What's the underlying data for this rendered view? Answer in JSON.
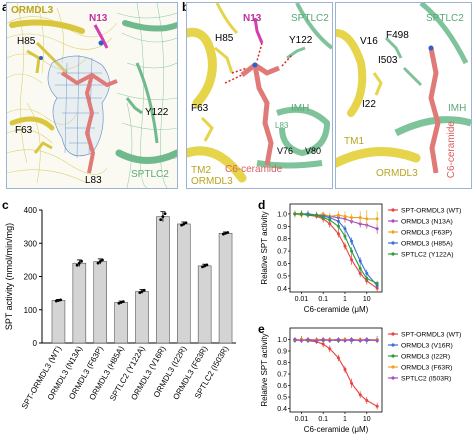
{
  "panel_labels": {
    "a": "a",
    "b": "b",
    "c": "c",
    "d": "d",
    "e": "e"
  },
  "panel_a": {
    "labels": {
      "ormdl3": "ORMDL3",
      "n13": "N13",
      "h85": "H85",
      "y122": "Y122",
      "f63": "F63",
      "l83": "L83",
      "sptlc2": "SPTLC2"
    }
  },
  "panel_b_left": {
    "labels": {
      "n13": "N13",
      "sptlc2": "SPTLC2",
      "h85": "H85",
      "y122": "Y122",
      "f63": "F63",
      "imh": "IMH",
      "l83": "L83",
      "v76": "V76",
      "v80": "V80",
      "c6": "C6-ceramide",
      "tm2": "TM2",
      "ormdl3": "ORMDL3"
    }
  },
  "panel_b_right": {
    "labels": {
      "sptlc2": "SPTLC2",
      "v16": "V16",
      "f498": "F498",
      "i503": "I503",
      "i22": "I22",
      "imh": "IMH",
      "tm1": "TM1",
      "ormdl3": "ORMDL3",
      "c6": "C6-ceramide"
    }
  },
  "colors": {
    "ormdl3": "#e6d44a",
    "sptlc2": "#7fc39a",
    "ceramide": "#e07a78",
    "n13": "#d23fb0",
    "map_blue": "#8fb0d8",
    "bar": "#d4d4d4"
  },
  "chart_data": [
    {
      "type": "bar",
      "panel": "c",
      "ylabel": "SPT activity (nmol/min/mg)",
      "ylim": [
        0,
        400
      ],
      "yticks": [
        0,
        100,
        200,
        300,
        400
      ],
      "categories": [
        "SPT-ORMDL3 (WT)",
        "ORMDL3 (N13A)",
        "ORMDL3 (F63P)",
        "ORMDL3 (H85A)",
        "SPTLC2 (Y122A)",
        "ORMDL3 (V16R)",
        "ORMDL3 (I22R)",
        "ORMDL3 (F63R)",
        "SPTLC2 (I503R)"
      ],
      "values": [
        128,
        240,
        245,
        122,
        155,
        380,
        358,
        232,
        330
      ],
      "errors": [
        3,
        10,
        8,
        4,
        6,
        15,
        6,
        5,
        4
      ]
    },
    {
      "type": "line",
      "panel": "d",
      "xlabel": "C6-ceramide (μM)",
      "ylabel": "Relative SPT activity",
      "xscale": "log",
      "xlim": [
        0.003,
        50
      ],
      "ylim": [
        0.37,
        1.08
      ],
      "xticks": [
        0.01,
        0.1,
        1,
        10
      ],
      "xtick_labels": [
        "0.01",
        "0.1",
        "1",
        "10"
      ],
      "yticks": [
        0.4,
        0.5,
        0.6,
        0.7,
        0.8,
        0.9,
        1.0
      ],
      "ytick_labels": [
        "0.4",
        "0.5",
        "0.6",
        "0.7",
        "0.8",
        "0.9",
        "1.0"
      ],
      "x": [
        0.005,
        0.01,
        0.02,
        0.05,
        0.1,
        0.2,
        0.5,
        1,
        2,
        5,
        10,
        30
      ],
      "series": [
        {
          "name": "SPT-ORMDL3 (WT)",
          "color": "#e8423f",
          "values": [
            1.0,
            1.0,
            0.99,
            0.98,
            0.96,
            0.92,
            0.84,
            0.74,
            0.63,
            0.52,
            0.46,
            0.4
          ],
          "errors": [
            0.02,
            0.03,
            0.02,
            0.02,
            0.03,
            0.03,
            0.03,
            0.03,
            0.04,
            0.03,
            0.03,
            0.03
          ]
        },
        {
          "name": "ORMDL3 (N13A)",
          "color": "#a64ac9",
          "values": [
            1.0,
            1.0,
            1.0,
            0.99,
            0.99,
            0.98,
            0.97,
            0.96,
            0.94,
            0.92,
            0.91,
            0.88
          ],
          "errors": [
            0.02,
            0.02,
            0.02,
            0.02,
            0.02,
            0.02,
            0.02,
            0.03,
            0.02,
            0.03,
            0.03,
            0.04
          ]
        },
        {
          "name": "ORMDL3 (F63P)",
          "color": "#f0a21c",
          "values": [
            1.0,
            0.99,
            1.0,
            0.99,
            1.0,
            0.98,
            0.99,
            0.98,
            0.97,
            0.97,
            0.96,
            0.96
          ],
          "errors": [
            0.03,
            0.02,
            0.03,
            0.03,
            0.02,
            0.03,
            0.03,
            0.04,
            0.03,
            0.05,
            0.07,
            0.06
          ]
        },
        {
          "name": "ORMDL3 (H85A)",
          "color": "#3a6fd8",
          "values": [
            1.0,
            1.0,
            1.0,
            0.99,
            0.98,
            0.97,
            0.94,
            0.88,
            0.78,
            0.62,
            0.52,
            0.42
          ],
          "errors": [
            0.02,
            0.02,
            0.02,
            0.02,
            0.02,
            0.02,
            0.03,
            0.03,
            0.03,
            0.03,
            0.03,
            0.02
          ]
        },
        {
          "name": "SPTLC2 (Y122A)",
          "color": "#2e9b3a",
          "values": [
            1.0,
            1.0,
            0.99,
            0.99,
            0.97,
            0.95,
            0.9,
            0.82,
            0.7,
            0.56,
            0.48,
            0.44
          ],
          "errors": [
            0.02,
            0.02,
            0.02,
            0.02,
            0.02,
            0.02,
            0.03,
            0.03,
            0.03,
            0.03,
            0.02,
            0.02
          ]
        }
      ]
    },
    {
      "type": "line",
      "panel": "e",
      "xlabel": "C6-ceramide (μM)",
      "ylabel": "Relative SPT activity",
      "xscale": "log",
      "xlim": [
        0.003,
        50
      ],
      "ylim": [
        0.37,
        1.1
      ],
      "xticks": [
        0.01,
        0.1,
        1,
        10
      ],
      "xtick_labels": [
        "0.01",
        "0.1",
        "1",
        "10"
      ],
      "yticks": [
        0.4,
        0.5,
        0.6,
        0.7,
        0.8,
        0.9,
        1.0
      ],
      "ytick_labels": [
        "0.4",
        "0.5",
        "0.6",
        "0.7",
        "0.8",
        "0.9",
        "1.0"
      ],
      "x": [
        0.005,
        0.01,
        0.02,
        0.05,
        0.1,
        0.2,
        0.5,
        1,
        2,
        5,
        10,
        30
      ],
      "series": [
        {
          "name": "SPT-ORMDL3 (WT)",
          "color": "#e8423f",
          "values": [
            1.0,
            1.0,
            0.99,
            0.98,
            0.96,
            0.92,
            0.84,
            0.74,
            0.62,
            0.52,
            0.47,
            0.42
          ],
          "errors": [
            0.02,
            0.03,
            0.02,
            0.02,
            0.03,
            0.03,
            0.03,
            0.03,
            0.04,
            0.03,
            0.03,
            0.03
          ]
        },
        {
          "name": "ORMDL3 (V16R)",
          "color": "#3a6fd8",
          "values": [
            1.0,
            1.0,
            1.0,
            0.99,
            1.0,
            1.0,
            0.99,
            1.0,
            0.99,
            1.0,
            0.99,
            1.0
          ],
          "errors": [
            0.02,
            0.02,
            0.02,
            0.02,
            0.02,
            0.02,
            0.02,
            0.02,
            0.03,
            0.02,
            0.03,
            0.03
          ]
        },
        {
          "name": "ORMDL3 (I22R)",
          "color": "#2e9b3a",
          "values": [
            0.99,
            1.0,
            0.99,
            1.0,
            0.99,
            1.0,
            0.99,
            1.0,
            1.0,
            0.99,
            1.0,
            0.99
          ],
          "errors": [
            0.02,
            0.02,
            0.02,
            0.02,
            0.02,
            0.02,
            0.02,
            0.02,
            0.02,
            0.02,
            0.02,
            0.02
          ]
        },
        {
          "name": "ORMDL3 (F63R)",
          "color": "#f0a21c",
          "values": [
            1.0,
            1.0,
            1.0,
            1.0,
            1.0,
            1.0,
            1.0,
            1.0,
            1.0,
            1.0,
            1.0,
            1.0
          ],
          "errors": [
            0.02,
            0.02,
            0.02,
            0.02,
            0.02,
            0.02,
            0.02,
            0.02,
            0.02,
            0.02,
            0.02,
            0.02
          ]
        },
        {
          "name": "SPTLC2 (I503R)",
          "color": "#a64ac9",
          "values": [
            1.0,
            0.99,
            1.0,
            0.99,
            1.0,
            0.99,
            1.0,
            0.99,
            1.0,
            0.99,
            1.0,
            0.99
          ],
          "errors": [
            0.02,
            0.02,
            0.02,
            0.02,
            0.02,
            0.02,
            0.02,
            0.02,
            0.02,
            0.02,
            0.02,
            0.02
          ]
        }
      ]
    }
  ]
}
